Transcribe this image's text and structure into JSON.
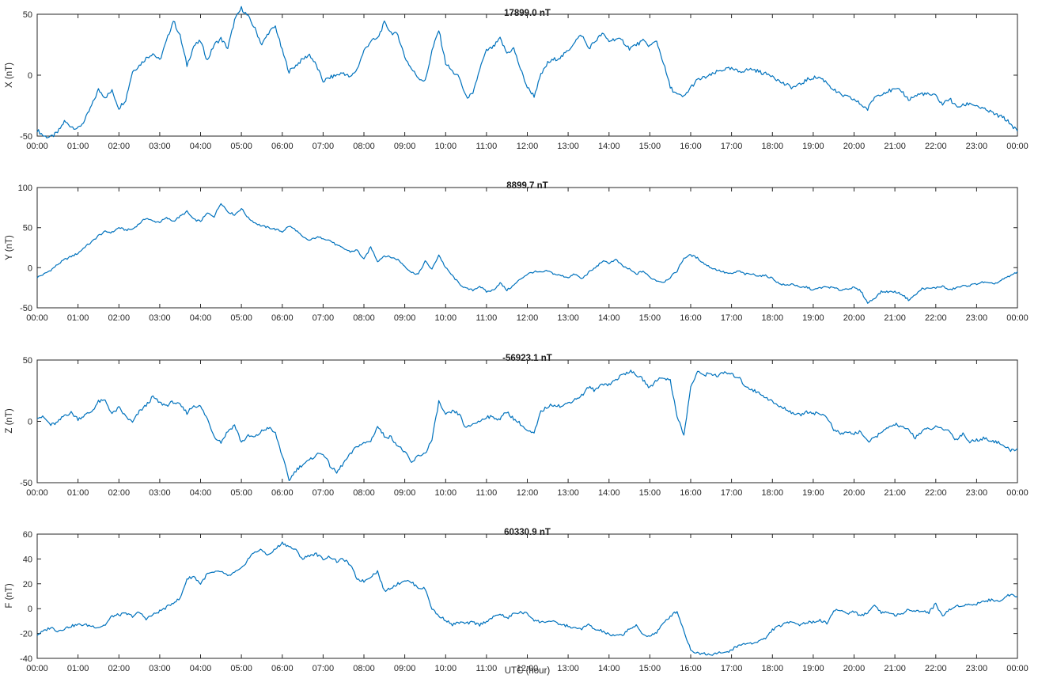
{
  "x_axis": {
    "label": "UTC (hour)",
    "tick_labels": [
      "00:00",
      "01:00",
      "02:00",
      "03:00",
      "04:00",
      "05:00",
      "06:00",
      "07:00",
      "08:00",
      "09:00",
      "10:00",
      "11:00",
      "12:00",
      "13:00",
      "14:00",
      "15:00",
      "16:00",
      "17:00",
      "18:00",
      "19:00",
      "20:00",
      "21:00",
      "22:00",
      "23:00",
      "00:00"
    ]
  },
  "chart_data": [
    {
      "type": "line",
      "title": "17899.0 nT",
      "ylabel": "X (nT)",
      "line_color": "#0072BD",
      "ylim": [
        -50,
        50
      ],
      "yticks": [
        -50,
        0,
        50
      ],
      "x_start_hour": 0,
      "x_end_hour": 24,
      "x_step_minutes": 10,
      "noise_amplitude": 1.6,
      "values": [
        -45,
        -50,
        -51,
        -47,
        -38,
        -42,
        -44,
        -37,
        -25,
        -12,
        -18,
        -13,
        -27,
        -20,
        3,
        8,
        14,
        18,
        12,
        28,
        45,
        32,
        8,
        24,
        28,
        12,
        25,
        30,
        22,
        45,
        55,
        48,
        38,
        25,
        35,
        40,
        20,
        3,
        8,
        13,
        17,
        8,
        -5,
        -2,
        0,
        2,
        -2,
        5,
        20,
        28,
        30,
        43,
        35,
        33,
        15,
        5,
        -2,
        -5,
        20,
        37,
        10,
        3,
        -2,
        -18,
        -16,
        5,
        20,
        23,
        30,
        18,
        22,
        5,
        -10,
        -17,
        0,
        10,
        13,
        15,
        20,
        28,
        33,
        22,
        28,
        34,
        28,
        30,
        28,
        22,
        25,
        28,
        24,
        28,
        10,
        -10,
        -16,
        -18,
        -10,
        -4,
        -2,
        0,
        3,
        5,
        5,
        3,
        4,
        5,
        3,
        1,
        0,
        -5,
        -8,
        -10,
        -8,
        -4,
        -2,
        -2,
        -6,
        -12,
        -16,
        -18,
        -20,
        -24,
        -28,
        -18,
        -15,
        -13,
        -12,
        -13,
        -20,
        -17,
        -15,
        -16,
        -17,
        -24,
        -19,
        -26,
        -25,
        -23,
        -25,
        -28,
        -30,
        -33,
        -35,
        -40,
        -46
      ]
    },
    {
      "type": "line",
      "title": "8899.7 nT",
      "ylabel": "Y (nT)",
      "line_color": "#0072BD",
      "ylim": [
        -50,
        100
      ],
      "yticks": [
        -50,
        0,
        50,
        100
      ],
      "x_start_hour": 0,
      "x_end_hour": 24,
      "x_step_minutes": 10,
      "noise_amplitude": 1.2,
      "values": [
        -12,
        -8,
        -3,
        4,
        10,
        14,
        18,
        26,
        32,
        40,
        45,
        44,
        50,
        47,
        48,
        55,
        62,
        58,
        57,
        62,
        58,
        64,
        70,
        60,
        58,
        68,
        64,
        81,
        70,
        66,
        74,
        62,
        56,
        52,
        50,
        48,
        45,
        52,
        47,
        38,
        34,
        38,
        37,
        34,
        28,
        24,
        20,
        22,
        10,
        26,
        8,
        15,
        13,
        10,
        2,
        -6,
        -8,
        8,
        -2,
        16,
        0,
        -10,
        -20,
        -26,
        -28,
        -23,
        -30,
        -28,
        -19,
        -28,
        -22,
        -14,
        -8,
        -5,
        -6,
        -4,
        -8,
        -10,
        -12,
        -8,
        -14,
        -6,
        0,
        8,
        6,
        10,
        2,
        -2,
        -8,
        -4,
        -12,
        -16,
        -18,
        -12,
        -4,
        12,
        16,
        12,
        5,
        0,
        -3,
        -6,
        -8,
        -4,
        -8,
        -8,
        -10,
        -10,
        -13,
        -20,
        -22,
        -20,
        -25,
        -24,
        -28,
        -25,
        -24,
        -25,
        -28,
        -26,
        -25,
        -29,
        -44,
        -38,
        -30,
        -30,
        -30,
        -33,
        -40,
        -34,
        -26,
        -26,
        -25,
        -23,
        -28,
        -25,
        -23,
        -22,
        -20,
        -18,
        -20,
        -19,
        -14,
        -10,
        -5
      ]
    },
    {
      "type": "line",
      "title": "-56923.1 nT",
      "ylabel": "Z (nT)",
      "line_color": "#0072BD",
      "ylim": [
        -50,
        50
      ],
      "yticks": [
        -50,
        0,
        50
      ],
      "x_start_hour": 0,
      "x_end_hour": 24,
      "x_step_minutes": 10,
      "noise_amplitude": 1.4,
      "values": [
        4,
        3,
        -3,
        -1,
        5,
        7,
        2,
        5,
        8,
        16,
        17,
        6,
        11,
        4,
        -1,
        8,
        13,
        20,
        15,
        13,
        16,
        13,
        7,
        13,
        12,
        2,
        -12,
        -17,
        -8,
        -3,
        -17,
        -12,
        -13,
        -8,
        -5,
        -10,
        -28,
        -48,
        -40,
        -35,
        -32,
        -27,
        -26,
        -36,
        -42,
        -34,
        -27,
        -20,
        -18,
        -16,
        -4,
        -12,
        -13,
        -20,
        -25,
        -34,
        -28,
        -26,
        -15,
        16,
        5,
        8,
        6,
        -6,
        -2,
        0,
        4,
        3,
        2,
        8,
        2,
        -2,
        -8,
        -10,
        8,
        12,
        14,
        12,
        15,
        18,
        21,
        28,
        25,
        31,
        30,
        34,
        38,
        41,
        38,
        34,
        27,
        34,
        36,
        33,
        5,
        -12,
        28,
        40,
        38,
        39,
        37,
        40,
        38,
        36,
        29,
        26,
        23,
        20,
        16,
        12,
        10,
        7,
        5,
        8,
        7,
        6,
        4,
        -7,
        -10,
        -9,
        -10,
        -8,
        -17,
        -14,
        -8,
        -6,
        -2,
        -5,
        -7,
        -13,
        -8,
        -6,
        -5,
        -6,
        -8,
        -15,
        -10,
        -17,
        -15,
        -14,
        -15,
        -17,
        -20,
        -24,
        -22
      ]
    },
    {
      "type": "line",
      "title": "60330.9 nT",
      "ylabel": "F (nT)",
      "xlabel": "UTC (hour)",
      "line_color": "#0072BD",
      "ylim": [
        -40,
        60
      ],
      "yticks": [
        -40,
        -20,
        0,
        20,
        40,
        60
      ],
      "x_start_hour": 0,
      "x_end_hour": 24,
      "x_step_minutes": 10,
      "noise_amplitude": 1.1,
      "values": [
        -21,
        -18,
        -15,
        -18,
        -16,
        -14,
        -13,
        -13,
        -14,
        -15,
        -13,
        -6,
        -5,
        -4,
        -6,
        -3,
        -8,
        -5,
        -2,
        1,
        5,
        8,
        24,
        26,
        20,
        28,
        29,
        30,
        26,
        29,
        32,
        40,
        46,
        47,
        43,
        48,
        53,
        50,
        47,
        40,
        43,
        44,
        40,
        42,
        38,
        40,
        35,
        24,
        22,
        26,
        30,
        14,
        17,
        20,
        23,
        21,
        17,
        16,
        0,
        -6,
        -9,
        -13,
        -11,
        -12,
        -11,
        -13,
        -10,
        -7,
        -4,
        -8,
        -4,
        -3,
        -4,
        -9,
        -11,
        -10,
        -11,
        -13,
        -14,
        -16,
        -16,
        -13,
        -17,
        -18,
        -21,
        -22,
        -21,
        -16,
        -14,
        -21,
        -22,
        -19,
        -12,
        -6,
        -2,
        -18,
        -33,
        -36,
        -36,
        -37,
        -35,
        -36,
        -33,
        -30,
        -28,
        -28,
        -26,
        -24,
        -17,
        -14,
        -12,
        -10,
        -13,
        -11,
        -11,
        -9,
        -12,
        -2,
        -1,
        -4,
        -2,
        -6,
        -3,
        3,
        -3,
        -3,
        -5,
        -5,
        0,
        -2,
        -2,
        -3,
        4,
        -6,
        -1,
        2,
        3,
        3,
        4,
        6,
        7,
        6,
        8,
        12,
        10
      ]
    }
  ]
}
